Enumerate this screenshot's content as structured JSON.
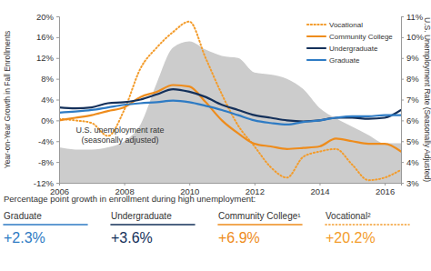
{
  "chart_data": {
    "type": "line",
    "y_label": "Year-on-Year Growth in Fall Enrollments",
    "y2_label": "U.S. Unemployment Rate (Seasonally Adjusted)",
    "annotation": [
      "U.S. unemployment rate",
      "(seasonally adjusted)"
    ],
    "x": [
      2006,
      2006.5,
      2007,
      2007.5,
      2008,
      2008.5,
      2009,
      2009.5,
      2010,
      2010.5,
      2011,
      2011.5,
      2012,
      2012.5,
      2013,
      2013.5,
      2014,
      2014.5,
      2015,
      2015.5,
      2016,
      2016.5
    ],
    "xlim": [
      2006,
      2016.5
    ],
    "xticks": [
      2006,
      2008,
      2010,
      2012,
      2014,
      2016
    ],
    "ylim": [
      -12,
      20
    ],
    "yticks": [
      {
        "value": -12,
        "label": "-12%"
      },
      {
        "value": -8,
        "label": "-8%"
      },
      {
        "value": -4,
        "label": "-4%"
      },
      {
        "value": 0,
        "label": "0%"
      },
      {
        "value": 4,
        "label": "4%"
      },
      {
        "value": 8,
        "label": "8%"
      },
      {
        "value": 12,
        "label": "12%"
      },
      {
        "value": 16,
        "label": "16%"
      },
      {
        "value": 20,
        "label": "20%"
      }
    ],
    "y2lim": [
      3,
      11
    ],
    "y2ticks": [
      {
        "value": 3,
        "label": "3%"
      },
      {
        "value": 4,
        "label": "4%"
      },
      {
        "value": 5,
        "label": "5%"
      },
      {
        "value": 6,
        "label": "6%"
      },
      {
        "value": 7,
        "label": "7%"
      },
      {
        "value": 8,
        "label": "8%"
      },
      {
        "value": 9,
        "label": "9%"
      },
      {
        "value": 10,
        "label": "10%"
      },
      {
        "value": 11,
        "label": "11%"
      }
    ],
    "grid": false,
    "legend": "upper right",
    "series": [
      {
        "name": "Vocational",
        "type": "line",
        "line_style": "dotted",
        "color": "#f39c2c",
        "values": [
          0.3,
          0,
          -0.5,
          -3,
          2,
          10,
          14,
          17,
          19,
          12,
          5,
          -1,
          -5,
          -9,
          -11,
          -7,
          -6,
          -5.5,
          -8.5,
          -11.5,
          -11,
          -9.5
        ]
      },
      {
        "name": "Community College",
        "type": "line",
        "line_style": "solid",
        "color": "#ee8c1c",
        "values": [
          0,
          0.5,
          1,
          1.8,
          2.5,
          4.5,
          5.5,
          6.8,
          6.5,
          3.5,
          0,
          -2.5,
          -4.5,
          -5,
          -5.5,
          -5.3,
          -5,
          -3.5,
          -4,
          -4.5,
          -4.5,
          -6
        ]
      },
      {
        "name": "Undergraduate",
        "type": "line",
        "line_style": "solid",
        "color": "#14305a",
        "values": [
          2.5,
          2.3,
          2.5,
          3.3,
          3.5,
          4,
          5,
          6,
          5.5,
          4.5,
          3,
          2,
          1,
          0.5,
          0,
          -0.2,
          0,
          0.5,
          0.5,
          0.3,
          0.5,
          2
        ]
      },
      {
        "name": "Graduate",
        "type": "line",
        "line_style": "solid",
        "color": "#2e7bc4",
        "values": [
          1.5,
          1.7,
          2,
          2.5,
          3,
          3.3,
          3.5,
          3.8,
          3.5,
          2.8,
          2,
          1,
          0,
          -0.5,
          -0.8,
          -0.3,
          0,
          0.5,
          0.8,
          0.8,
          1,
          1
        ]
      },
      {
        "type": "area",
        "axis": "y2",
        "color": "#cccccc",
        "values": [
          4.7,
          4.6,
          4.6,
          4.7,
          5,
          5.8,
          7.8,
          9.5,
          9.8,
          9.4,
          9.1,
          9.0,
          8.3,
          8.2,
          8.0,
          7.5,
          6.6,
          6.1,
          5.7,
          5.3,
          4.9,
          4.9
        ]
      }
    ],
    "summary": {
      "title": "Percentage point growth in enrollment during high unemployment:",
      "items": [
        {
          "name": "Graduate",
          "label": "+2.3%",
          "color": "#2e7bc4",
          "line_style": "solid"
        },
        {
          "name": "Undergraduate",
          "label": "+3.6%",
          "color": "#14305a",
          "line_style": "solid"
        },
        {
          "name": "Community College¹",
          "label": "+6.9%",
          "color": "#ee8c1c",
          "line_style": "solid"
        },
        {
          "name": "Vocational²",
          "label": "+20.2%",
          "color": "#f39c2c",
          "line_style": "dotted"
        }
      ]
    }
  }
}
